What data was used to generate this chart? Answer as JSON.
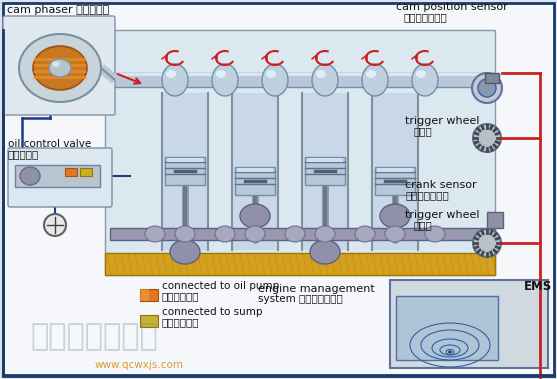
{
  "bg_color": "#f0f0f0",
  "outer_border_color": "#1a3a6b",
  "inner_bg": "#e8eef4",
  "labels": {
    "cam_phaser": "cam phaser 相位调节器",
    "oil_control_valve_en": "oil control valve",
    "oil_control_valve_cn": "机油控制阀",
    "cam_position_sensor_en": "cam position sensor",
    "cam_position_sensor_cn": "凸轮位置传感器",
    "trigger_wheel_top_en": "trigger wheel",
    "trigger_wheel_top_cn": "信号盘",
    "crank_sensor_en": "crank sensor",
    "crank_sensor_cn": "曲轴位置传感器",
    "trigger_wheel_bot_en": "trigger wheel",
    "trigger_wheel_bot_cn": "信号盘",
    "connected_oil_pump_en": "connected to oil pump",
    "connected_oil_pump_cn": "连接至机油泵",
    "connected_sump_en": "connected to sump",
    "connected_sump_cn": "连接至油底壳",
    "engine_mgmt_en": "engine management",
    "engine_mgmt_en2": "system 发动机管理系统",
    "ems": "EMS",
    "watermark_url": "www.qcwxjs.com",
    "watermark_cn": "汽车维修技术网"
  },
  "legend_colors": {
    "oil_pump": "#e07820",
    "sump": "#c8b030"
  },
  "figsize": [
    5.57,
    3.79
  ],
  "dpi": 100
}
